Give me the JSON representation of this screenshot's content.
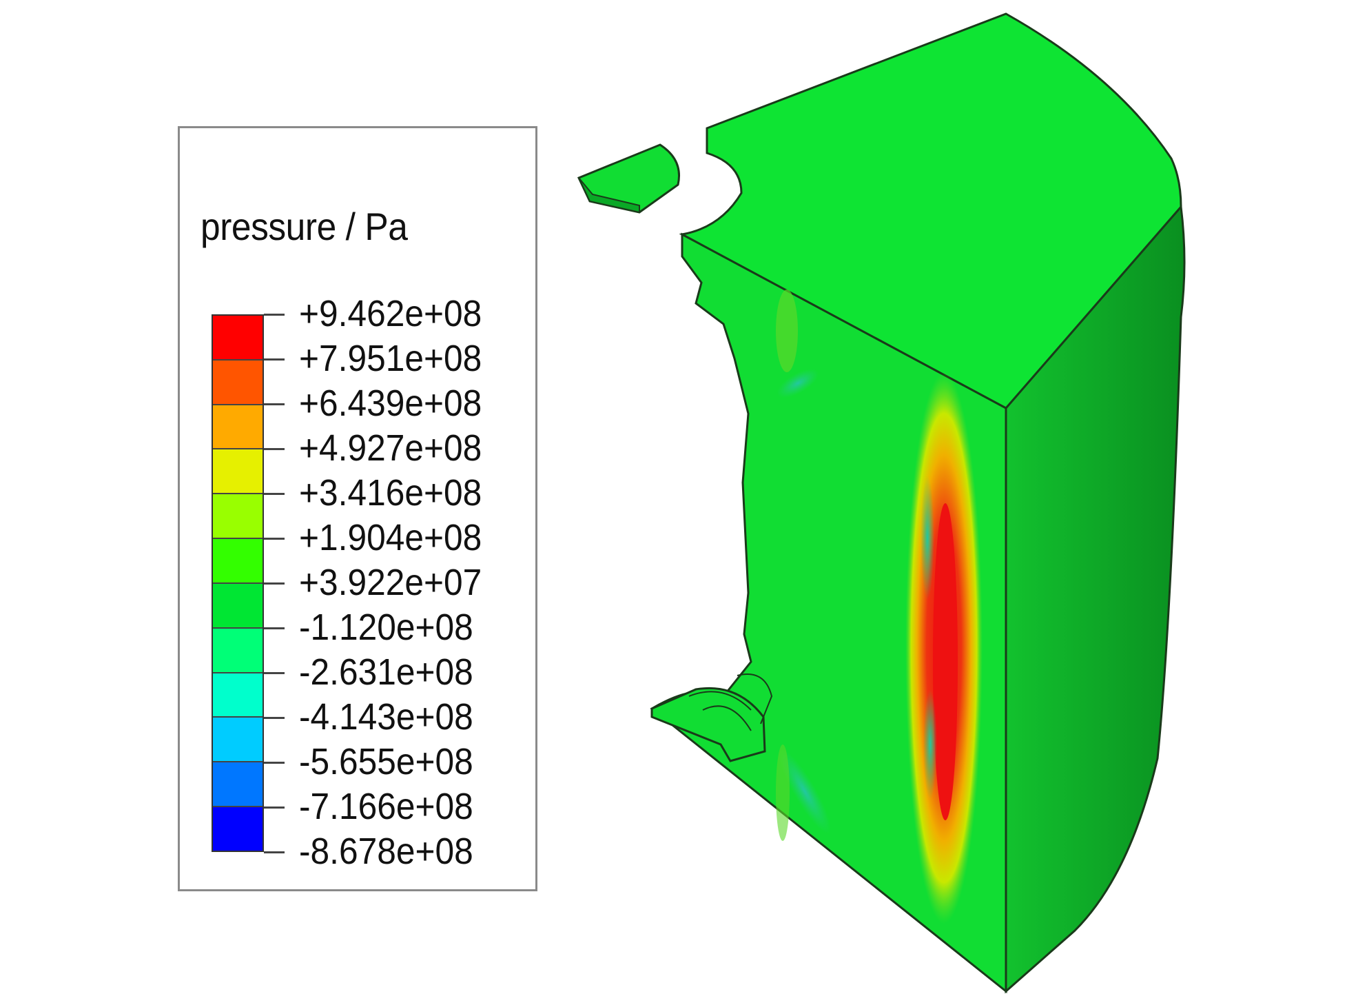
{
  "legend": {
    "title": "pressure / Pa",
    "bands": [
      "#ff0000",
      "#ff5500",
      "#ffaa00",
      "#e6f000",
      "#99ff00",
      "#33ff00",
      "#00e633",
      "#00ff77",
      "#00ffcc",
      "#00ccff",
      "#0077ff",
      "#0000ff"
    ],
    "ticks": [
      "+9.462e+08",
      "+7.951e+08",
      "+6.439e+08",
      "+4.927e+08",
      "+3.416e+08",
      "+1.904e+08",
      "+3.922e+07",
      "-1.120e+08",
      "-2.631e+08",
      "-4.143e+08",
      "-5.655e+08",
      "-7.166e+08",
      "-8.678e+08"
    ]
  },
  "colors": {
    "base_green": "#11dd33",
    "top_green": "#0ee433",
    "side_green": "#0a9a22",
    "hot_red": "#ee1111",
    "hot_yellow": "#d8e000",
    "cool_cyan": "#22c8a0"
  }
}
